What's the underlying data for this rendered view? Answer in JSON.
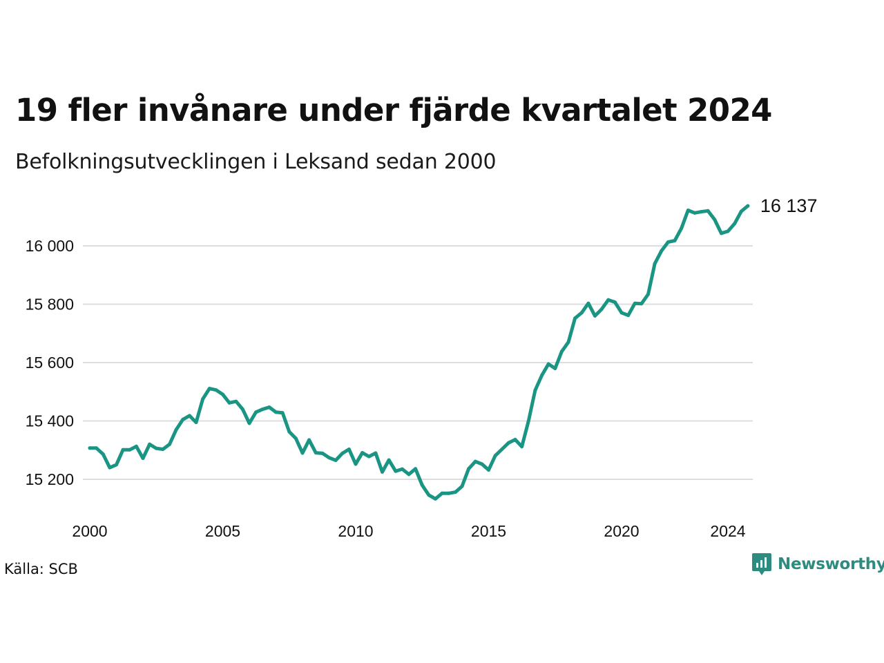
{
  "colors": {
    "line": "#1a9584",
    "grid": "#dddddd",
    "text": "#111111",
    "brand": "#2e8b7f"
  },
  "chart_data": {
    "type": "line",
    "title": "19 fler invånare under fjärde kvartalet 2024",
    "subtitle": "Befolkningsutvecklingen i Leksand sedan 2000",
    "source": "Källa: SCB",
    "brand": "Newsworthy",
    "brand_icon": "newsworthy-logo-icon",
    "grid": true,
    "ylim": [
      15120,
      16180
    ],
    "xlim": [
      2000,
      2025
    ],
    "y_ticks": [
      {
        "value": 15200,
        "label": "15 200"
      },
      {
        "value": 15400,
        "label": "15 400"
      },
      {
        "value": 15600,
        "label": "15 600"
      },
      {
        "value": 15800,
        "label": "15 800"
      },
      {
        "value": 16000,
        "label": "16 000"
      }
    ],
    "x_ticks": [
      {
        "value": 2000,
        "label": "2000"
      },
      {
        "value": 2005,
        "label": "2005"
      },
      {
        "value": 2010,
        "label": "2010"
      },
      {
        "value": 2015,
        "label": "2015"
      },
      {
        "value": 2020,
        "label": "2020"
      },
      {
        "value": 2024,
        "label": "2024"
      }
    ],
    "end_label": "16 137",
    "x": [
      2000.0,
      2000.25,
      2000.5,
      2000.75,
      2001.0,
      2001.25,
      2001.5,
      2001.75,
      2002.0,
      2002.25,
      2002.5,
      2002.75,
      2003.0,
      2003.25,
      2003.5,
      2003.75,
      2004.0,
      2004.25,
      2004.5,
      2004.75,
      2005.0,
      2005.25,
      2005.5,
      2005.75,
      2006.0,
      2006.25,
      2006.5,
      2006.75,
      2007.0,
      2007.25,
      2007.5,
      2007.75,
      2008.0,
      2008.25,
      2008.5,
      2008.75,
      2009.0,
      2009.25,
      2009.5,
      2009.75,
      2010.0,
      2010.25,
      2010.5,
      2010.75,
      2011.0,
      2011.25,
      2011.5,
      2011.75,
      2012.0,
      2012.25,
      2012.5,
      2012.75,
      2013.0,
      2013.25,
      2013.5,
      2013.75,
      2014.0,
      2014.25,
      2014.5,
      2014.75,
      2015.0,
      2015.25,
      2015.5,
      2015.75,
      2016.0,
      2016.25,
      2016.5,
      2016.75,
      2017.0,
      2017.25,
      2017.5,
      2017.75,
      2018.0,
      2018.25,
      2018.5,
      2018.75,
      2019.0,
      2019.25,
      2019.5,
      2019.75,
      2020.0,
      2020.25,
      2020.5,
      2020.75,
      2021.0,
      2021.25,
      2021.5,
      2021.75,
      2022.0,
      2022.25,
      2022.5,
      2022.75,
      2023.0,
      2023.25,
      2023.5,
      2023.75,
      2024.0,
      2024.25,
      2024.5,
      2024.75
    ],
    "series": [
      {
        "values": [
          15307,
          15307,
          15286,
          15240,
          15250,
          15301,
          15301,
          15313,
          15272,
          15320,
          15306,
          15303,
          15320,
          15370,
          15405,
          15418,
          15395,
          15475,
          15511,
          15506,
          15491,
          15462,
          15467,
          15440,
          15392,
          15430,
          15440,
          15447,
          15430,
          15428,
          15363,
          15340,
          15290,
          15335,
          15291,
          15289,
          15274,
          15265,
          15289,
          15303,
          15252,
          15291,
          15278,
          15290,
          15225,
          15266,
          15228,
          15235,
          15217,
          15236,
          15180,
          15146,
          15133,
          15152,
          15152,
          15156,
          15176,
          15236,
          15261,
          15252,
          15232,
          15281,
          15303,
          15325,
          15336,
          15312,
          15400,
          15505,
          15556,
          15595,
          15580,
          15638,
          15670,
          15752,
          15771,
          15803,
          15760,
          15783,
          15815,
          15807,
          15771,
          15762,
          15803,
          15802,
          15834,
          15939,
          15983,
          16013,
          16018,
          16060,
          16122,
          16113,
          16117,
          16120,
          16090,
          16043,
          16050,
          16076,
          16118,
          16137
        ]
      }
    ]
  }
}
